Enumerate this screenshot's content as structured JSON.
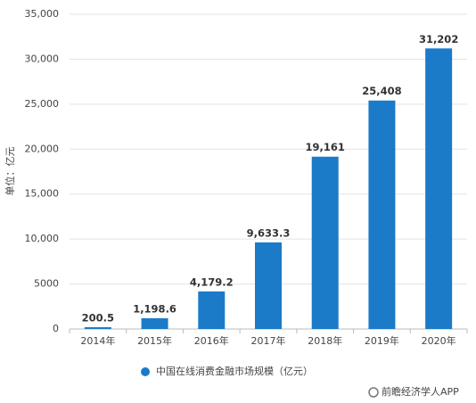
{
  "chart_data": {
    "type": "bar",
    "y_label": "单位：亿元",
    "categories": [
      "2014年",
      "2015年",
      "2016年",
      "2017年",
      "2018年",
      "2019年",
      "2020年"
    ],
    "series": [
      {
        "name": "中国在线消费金融市场规模（亿元）",
        "color": "#1b7bc9",
        "values": [
          200.5,
          1198.6,
          4179.2,
          9633.3,
          19161,
          25408,
          31202
        ],
        "value_labels": [
          "200.5",
          "1,198.6",
          "4,179.2",
          "9,633.3",
          "19,161",
          "25,408",
          "31,202"
        ]
      }
    ],
    "ylim": [
      0,
      35000
    ],
    "yticks": [
      0,
      5000,
      {
        "value": 10000,
        "label": "10,000"
      },
      {
        "value": 15000,
        "label": "15,000"
      },
      {
        "value": 20000,
        "label": "20,000"
      },
      {
        "value": 25000,
        "label": "25,000"
      },
      {
        "value": 30000,
        "label": "30,000"
      },
      {
        "value": 35000,
        "label": "35,000"
      }
    ],
    "grid": true,
    "source": "前瞻经济学人APP"
  }
}
